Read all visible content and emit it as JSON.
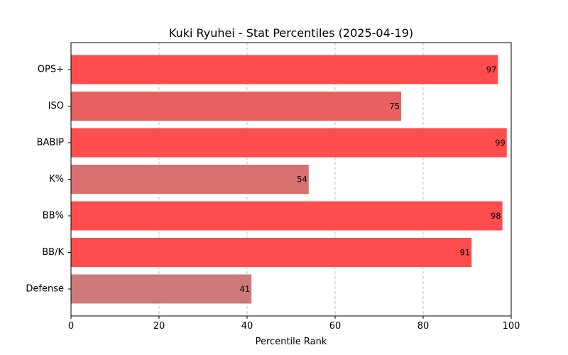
{
  "chart_data": {
    "type": "bar",
    "orientation": "horizontal",
    "title": "Kuki Ryuhei - Stat Percentiles (2025-04-19)",
    "xlabel": "Percentile Rank",
    "ylabel": "",
    "xlim": [
      0,
      100
    ],
    "xticks": [
      "0",
      "20",
      "40",
      "60",
      "80",
      "100"
    ],
    "grid": "x-dashed",
    "categories": [
      "OPS+",
      "ISO",
      "BABIP",
      "K%",
      "BB%",
      "BB/K",
      "Defense"
    ],
    "values": [
      97,
      75,
      99,
      54,
      98,
      91,
      41
    ],
    "bar_colors": [
      "#ff4d4d",
      "#e86060",
      "#ff4d4d",
      "#d97070",
      "#ff4d4d",
      "#ff4d4d",
      "#cf7a7a"
    ]
  }
}
